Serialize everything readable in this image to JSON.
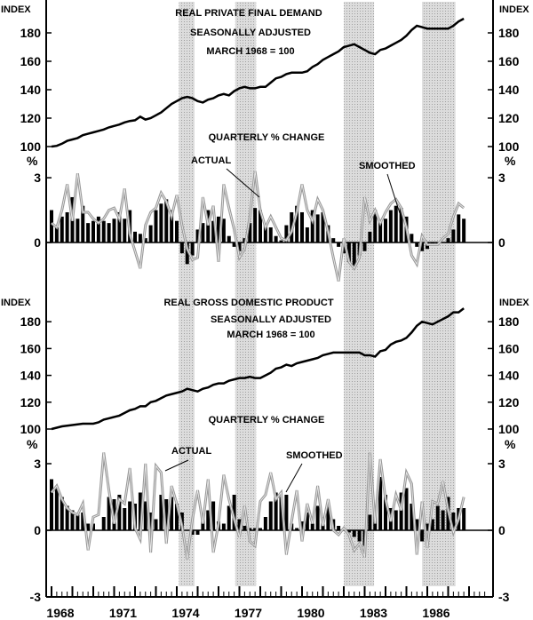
{
  "chart_data": [
    {
      "type": "line+bar",
      "title": "REAL PRIVATE FINAL DEMAND",
      "subtitle": [
        "SEASONALLY ADJUSTED",
        "MARCH 1968 = 100"
      ],
      "sub_title_pct": "QUARTERLY % CHANGE",
      "left_unit_index": "INDEX",
      "right_unit_index": "INDEX",
      "left_unit_pct": "%",
      "right_unit_pct": "%",
      "index_ticks": [
        "100",
        "120",
        "140",
        "160",
        "180"
      ],
      "index_tick_values": [
        100,
        120,
        140,
        160,
        180
      ],
      "pct_ticks": [
        "0",
        "3"
      ],
      "pct_tick_values": [
        0,
        3
      ],
      "annotations": {
        "actual": "ACTUAL",
        "smoothed": "SMOOTHED"
      },
      "index": [
        100,
        100.5,
        102,
        104,
        105,
        106,
        108,
        109,
        110,
        111,
        112,
        113.5,
        114.5,
        115.5,
        117,
        118,
        118.5,
        121,
        119,
        120,
        122,
        124,
        127,
        130,
        132,
        134,
        135,
        134,
        132,
        131,
        133,
        134,
        136,
        137,
        136,
        139,
        141,
        142,
        141,
        141,
        142,
        142,
        145,
        148,
        149,
        151,
        152,
        152,
        152,
        153,
        156,
        158,
        161,
        163,
        165,
        167,
        170,
        171,
        172,
        170,
        168,
        166,
        165,
        168,
        169,
        171,
        173,
        175,
        178,
        182,
        185,
        184,
        183,
        183,
        183,
        183,
        183,
        185,
        188,
        190
      ],
      "smoothed": [
        1.5,
        0.7,
        1.2,
        1.4,
        2.1,
        1.1,
        1.7,
        0.9,
        1.0,
        1.2,
        1.0,
        0.9,
        1.1,
        1.4,
        1.1,
        1.5,
        0.5,
        0.4,
        0.2,
        0.8,
        1.5,
        1.8,
        2.0,
        1.5,
        1.0,
        -0.5,
        -1.0,
        -0.6,
        0.6,
        0.9,
        1.5,
        1.0,
        1.2,
        1.1,
        0.3,
        -0.2,
        -0.4,
        0.2,
        0.9,
        1.6,
        1.5,
        0.8,
        0.7,
        0.3,
        0.1,
        0.8,
        1.4,
        1.7,
        1.4,
        0.7,
        1.5,
        1.3,
        1.4,
        0.8,
        0.2,
        -0.2,
        -0.5,
        -0.9,
        -1.1,
        -0.6,
        -0.4,
        0.5,
        1.5,
        1.0,
        1.1,
        1.5,
        1.7,
        1.6,
        1.2,
        0.4,
        -0.2,
        -0.4,
        -0.3,
        -0.1,
        -0.1,
        0.0,
        0.2,
        0.6,
        1.3,
        1.1
      ],
      "actual": [
        0.9,
        0.7,
        1.5,
        2.7,
        1.0,
        3.2,
        1.4,
        1.4,
        1.1,
        0.9,
        1.1,
        1.5,
        1.6,
        1.1,
        2.5,
        0.4,
        -0.4,
        -1.2,
        0.8,
        1.4,
        1.6,
        2.3,
        1.9,
        1.2,
        2.2,
        0.8,
        -0.3,
        -0.8,
        -0.7,
        2.1,
        0.8,
        1.7,
        -0.9,
        2.7,
        1.6,
        0.6,
        -0.7,
        -0.3,
        1.2,
        3.3,
        1.5,
        0.7,
        1.2,
        0.7,
        0.2,
        0.1,
        0.5,
        1.4,
        2.7,
        1.5,
        1.0,
        2.0,
        1.5,
        0.5,
        -0.7,
        -1.8,
        0.2,
        -0.9,
        -1.2,
        -0.7,
        2.1,
        1.0,
        1.5,
        0.9,
        1.4,
        1.8,
        2.0,
        1.6,
        0.7,
        -0.6,
        -1.0,
        0.3,
        -0.1,
        -0.1,
        -0.1,
        0.2,
        0.4,
        1.2,
        1.8,
        1.6
      ]
    },
    {
      "type": "line+bar",
      "title": "REAL GROSS DOMESTIC PRODUCT",
      "subtitle": [
        "SEASONALLY ADJUSTED",
        "MARCH 1968 = 100"
      ],
      "sub_title_pct": "QUARTERLY % CHANGE",
      "left_unit_index": "INDEX",
      "right_unit_index": "INDEX",
      "left_unit_pct": "%",
      "right_unit_pct": "%",
      "index_ticks": [
        "100",
        "120",
        "140",
        "160",
        "180"
      ],
      "index_tick_values": [
        100,
        120,
        140,
        160,
        180
      ],
      "pct_ticks": [
        "-3",
        "0",
        "3"
      ],
      "pct_tick_values": [
        -3,
        0,
        3
      ],
      "annotations": {
        "actual": "ACTUAL",
        "smoothed": "SMOOTHED"
      },
      "index": [
        100,
        101,
        102,
        102.5,
        103,
        103.5,
        104,
        104,
        104,
        105,
        107,
        108,
        109,
        110,
        112,
        114,
        115,
        117,
        117,
        120,
        121,
        123,
        125,
        126,
        127,
        128,
        130,
        129,
        128,
        130,
        131,
        133,
        134,
        134,
        136,
        137,
        138,
        138,
        139,
        138,
        138,
        140,
        142,
        145,
        146,
        148,
        147,
        149,
        150,
        151,
        152,
        153,
        155,
        156,
        157,
        157,
        157,
        157,
        157,
        157,
        155,
        155,
        154,
        158,
        159,
        163,
        165,
        166,
        168,
        172,
        177,
        180,
        179,
        178,
        180,
        182,
        184,
        187,
        187,
        190
      ],
      "smoothed": [
        2.3,
        1.9,
        1.5,
        1.1,
        0.9,
        0.7,
        0.8,
        0.3,
        0.3,
        0.0,
        0.6,
        1.5,
        1.4,
        1.6,
        1.0,
        1.3,
        1.2,
        1.7,
        1.3,
        0.8,
        0.5,
        1.6,
        1.4,
        1.5,
        1.2,
        0.8,
        0.0,
        -0.2,
        -0.2,
        0.5,
        0.9,
        1.3,
        0.4,
        0.3,
        1.1,
        1.6,
        0.5,
        0.2,
        0.1,
        0.1,
        0.1,
        0.6,
        1.3,
        1.7,
        1.5,
        1.6,
        0.3,
        0.1,
        0.4,
        0.8,
        0.3,
        1.1,
        0.6,
        1.1,
        0.5,
        0.2,
        0.0,
        -0.1,
        -0.3,
        -0.5,
        -0.7,
        0.7,
        1.0,
        2.4,
        1.6,
        1.0,
        0.9,
        1.7,
        1.9,
        1.2,
        0.5,
        -0.5,
        0.3,
        0.5,
        1.1,
        0.9,
        1.5,
        0.8,
        1.0,
        1.0
      ],
      "actual": [
        1.7,
        2.0,
        1.4,
        1.0,
        0.8,
        0.7,
        1.2,
        -0.9,
        0.6,
        0.7,
        3.5,
        1.8,
        0.3,
        1.4,
        1.2,
        2.8,
        0.1,
        -0.4,
        3.0,
        -1.0,
        2.9,
        2.6,
        -0.6,
        2.0,
        1.2,
        0.2,
        -1.3,
        0.5,
        1.8,
        0.3,
        2.3,
        -1.0,
        0.3,
        2.5,
        1.4,
        0.5,
        -0.3,
        1.1,
        -0.5,
        -0.7,
        1.3,
        1.6,
        2.6,
        1.4,
        1.7,
        -1.1,
        0.4,
        1.8,
        -0.5,
        1.2,
        0.3,
        2.0,
        0.2,
        1.4,
        0.0,
        -0.2,
        0.1,
        -0.2,
        -0.9,
        -0.6,
        -1.2,
        3.5,
        0.3,
        3.2,
        1.4,
        0.4,
        1.6,
        0.9,
        2.6,
        2.1,
        -1.1,
        1.3,
        -0.8,
        1.3,
        1.2,
        2.2,
        0.9,
        -0.1,
        0.5,
        1.5
      ]
    }
  ],
  "x_axis": {
    "start_year": 1968,
    "tick_labels": [
      "1968",
      "1971",
      "1974",
      "1977",
      "1980",
      "1983",
      "1986"
    ],
    "tick_years": [
      1968,
      1971,
      1974,
      1977,
      1980,
      1983,
      1986
    ]
  },
  "shaded_periods": [
    [
      1974.1,
      1974.85
    ],
    [
      1976.8,
      1977.8
    ],
    [
      1982.0,
      1983.45
    ],
    [
      1985.75,
      1987.35
    ]
  ],
  "colors": {
    "index_line": "#000000",
    "bars": "#000000",
    "actual_line": "#9a9a9a",
    "shading": "#cfcfcf"
  }
}
